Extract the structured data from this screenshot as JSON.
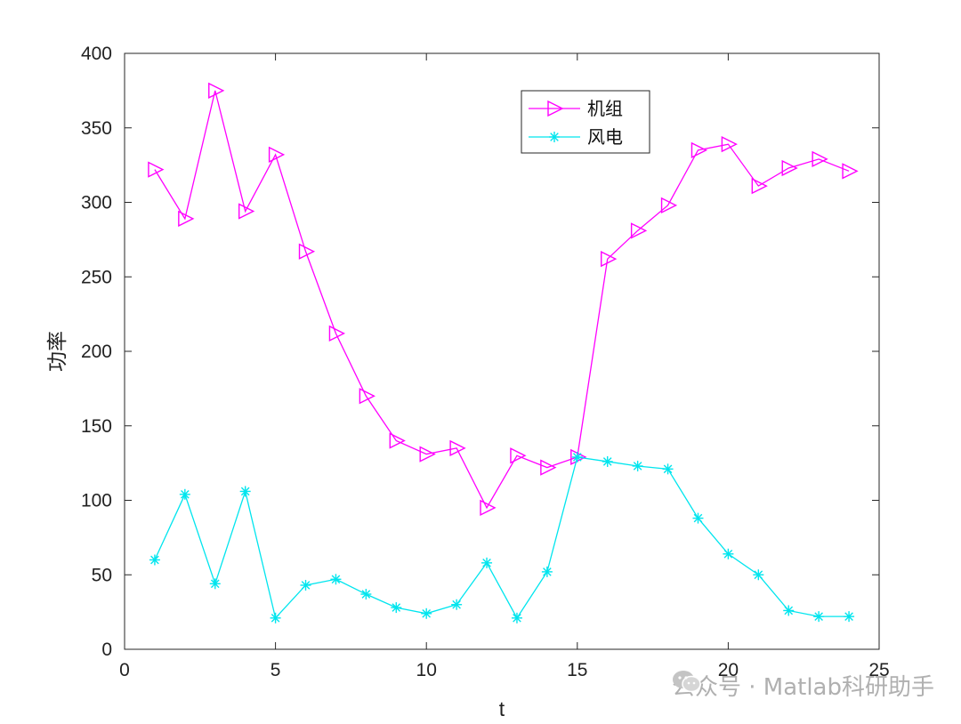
{
  "chart_data": {
    "type": "line",
    "xlabel": "t",
    "ylabel": "功率",
    "xlim": [
      0,
      25
    ],
    "ylim": [
      0,
      400
    ],
    "xticks": [
      0,
      5,
      10,
      15,
      20,
      25
    ],
    "yticks": [
      0,
      50,
      100,
      150,
      200,
      250,
      300,
      350,
      400
    ],
    "legend_position": "top-right",
    "grid": false,
    "x": [
      1,
      2,
      3,
      4,
      5,
      6,
      7,
      8,
      9,
      10,
      11,
      12,
      13,
      14,
      15,
      16,
      17,
      18,
      19,
      20,
      21,
      22,
      23,
      24
    ],
    "series": [
      {
        "name": "机组",
        "color": "#ff00ff",
        "marker": "triangle-right",
        "values": [
          322,
          289,
          375,
          294,
          332,
          267,
          212,
          170,
          140,
          131,
          135,
          95,
          130,
          122,
          129,
          262,
          281,
          298,
          335,
          339,
          311,
          323,
          329,
          321
        ]
      },
      {
        "name": "风电",
        "color": "#00e5ee",
        "marker": "asterisk",
        "values": [
          60,
          104,
          44,
          106,
          21,
          43,
          47,
          37,
          28,
          24,
          30,
          58,
          21,
          52,
          129,
          126,
          123,
          121,
          88,
          64,
          50,
          26,
          22,
          22
        ]
      }
    ]
  },
  "watermark": {
    "text": "公众号 · Matlab科研助手",
    "icon": "wechat-icon"
  }
}
